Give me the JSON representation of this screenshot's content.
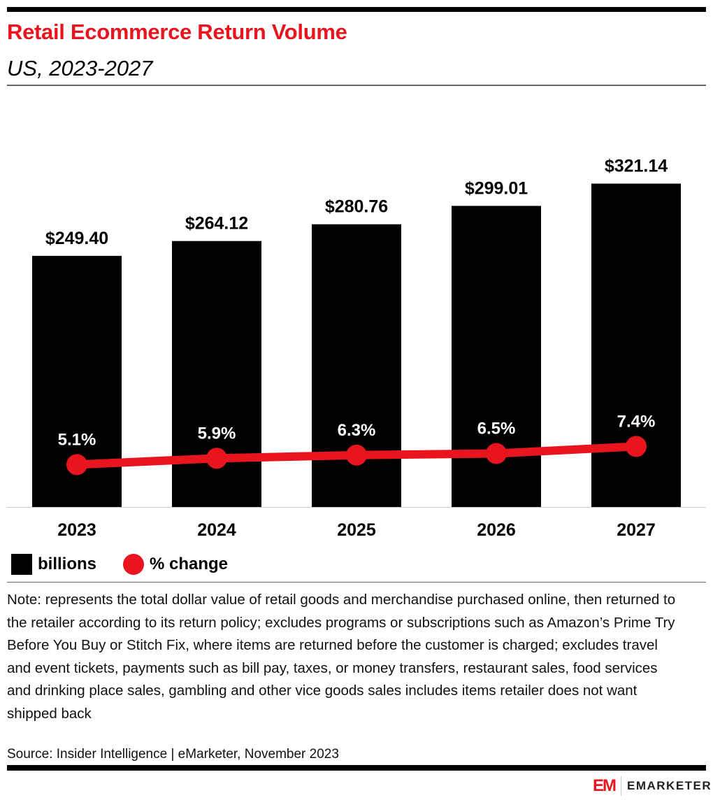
{
  "header": {
    "title": "Retail Ecommerce Return Volume",
    "subtitle": "US, 2023-2027"
  },
  "chart_data": {
    "type": "bar+line",
    "categories": [
      "2023",
      "2024",
      "2025",
      "2026",
      "2027"
    ],
    "series": [
      {
        "name": "billions",
        "type": "bar",
        "values": [
          249.4,
          264.12,
          280.76,
          299.01,
          321.14
        ],
        "labels": [
          "$249.40",
          "$264.12",
          "$280.76",
          "$299.01",
          "$321.14"
        ],
        "color": "#000000"
      },
      {
        "name": "% change",
        "type": "line",
        "values": [
          5.1,
          5.9,
          6.3,
          6.5,
          7.4
        ],
        "labels": [
          "5.1%",
          "5.9%",
          "6.3%",
          "6.5%",
          "7.4%"
        ],
        "color": "#e8141e"
      }
    ],
    "legend": "bottom-left",
    "grid": false
  },
  "legend": {
    "bar": "billions",
    "line": "% change"
  },
  "note": "Note: represents the total dollar value of retail goods and merchandise purchased online, then returned to the retailer according to its return policy; excludes programs or subscriptions such as Amazon’s Prime Try Before You Buy or Stitch Fix, where items are returned before the customer is charged; excludes travel and event tickets, payments such as bill pay, taxes, or money transfers, restaurant sales, food services and drinking place sales, gambling and other vice goods sales includes items retailer does not want shipped back",
  "source": "Source: Insider Intelligence | eMarketer, November 2023",
  "logo": {
    "mark": "EM",
    "text": "EMARKETER"
  }
}
